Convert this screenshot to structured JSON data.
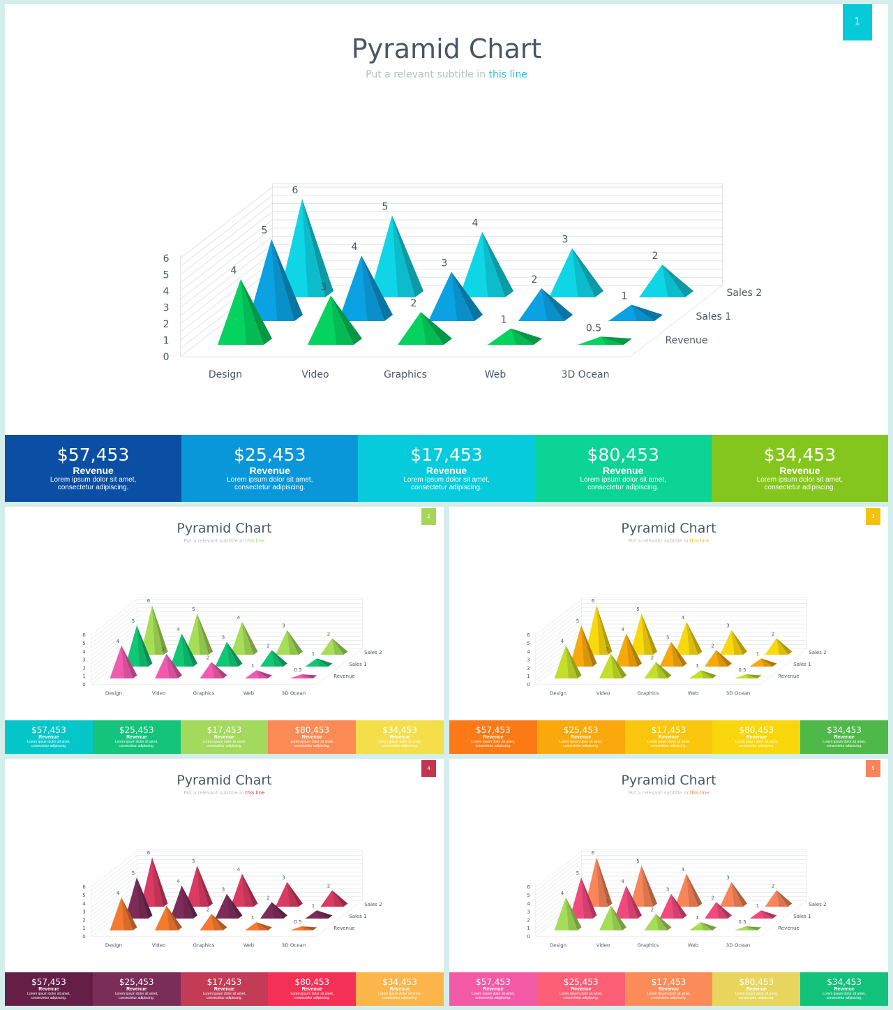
{
  "slides": [
    {
      "title": "Pyramid Chart",
      "subtitle_prefix": "Put a relevant subtitle in ",
      "subtitle_link": "this line",
      "page_number": "1",
      "accent": "#08c9d7",
      "pyramid_colors": [
        "#05d35f",
        "#0ba2e3",
        "#0fd6e6"
      ],
      "card_colors": [
        "#0a4fa3",
        "#0a97d9",
        "#06cbdc",
        "#0cd494",
        "#84c61d"
      ]
    },
    {
      "title": "Pyramid Chart",
      "subtitle_prefix": "Put a relevant subtitle in ",
      "subtitle_link": "this line",
      "page_number": "2",
      "accent": "#a6d658",
      "pyramid_colors": [
        "#f25ab0",
        "#11c775",
        "#a6de58"
      ],
      "card_colors": [
        "#05c6c8",
        "#13c47a",
        "#a3d95c",
        "#fb8a54",
        "#f4df4a"
      ]
    },
    {
      "title": "Pyramid Chart",
      "subtitle_prefix": "Put a relevant subtitle in ",
      "subtitle_link": "this line",
      "page_number": "3",
      "accent": "#f3c20e",
      "pyramid_colors": [
        "#c3df2a",
        "#f7a90c",
        "#f9d80e"
      ],
      "card_colors": [
        "#fb7a16",
        "#fba80c",
        "#f9c60d",
        "#fad60d",
        "#4eb948"
      ]
    },
    {
      "title": "Pyramid Chart",
      "subtitle_prefix": "Put a relevant subtitle in ",
      "subtitle_link": "this line",
      "page_number": "4",
      "accent": "#c3354f",
      "pyramid_colors": [
        "#f57a30",
        "#7d2c5a",
        "#d93b63"
      ],
      "card_colors": [
        "#651f46",
        "#7b2d59",
        "#c33b55",
        "#f43057",
        "#fbb54a"
      ]
    },
    {
      "title": "Pyramid Chart",
      "subtitle_prefix": "Put a relevant subtitle in ",
      "subtitle_link": "this line",
      "page_number": "5",
      "accent": "#f9845a",
      "pyramid_colors": [
        "#a6dd58",
        "#f0497d",
        "#f9855a"
      ],
      "card_colors": [
        "#f35aa6",
        "#fb5f76",
        "#fb8c5a",
        "#e8d55e",
        "#12c27a"
      ]
    }
  ],
  "cards": [
    {
      "value": "$57,453",
      "label": "Revenue",
      "desc1": "Lorem ipsum dolor sit amet,",
      "desc2": "consectetur adipiscing."
    },
    {
      "value": "$25,453",
      "label": "Revenue",
      "desc1": "Lorem ipsum dolor sit amet,",
      "desc2": "consectetur adipiscing."
    },
    {
      "value": "$17,453",
      "label": "Revenue",
      "desc1": "Lorem ipsum dolor sit amet,",
      "desc2": "consectetur adipiscing."
    },
    {
      "value": "$80,453",
      "label": "Revenue",
      "desc1": "Lorem ipsum dolor sit amet,",
      "desc2": "consectetur adipiscing."
    },
    {
      "value": "$34,453",
      "label": "Revenue",
      "desc1": "Lorem ipsum dolor sit amet,",
      "desc2": "consectetur adipiscing."
    }
  ],
  "chart_data": {
    "type": "bar",
    "shape": "pyramid-3d",
    "categories": [
      "Design",
      "Video",
      "Graphics",
      "Web",
      "3D Ocean"
    ],
    "series": [
      {
        "name": "Revenue",
        "values": [
          4,
          3,
          2,
          1,
          0.5
        ]
      },
      {
        "name": "Sales 1",
        "values": [
          5,
          4,
          3,
          2,
          1
        ]
      },
      {
        "name": "Sales 2",
        "values": [
          6,
          5,
          4,
          3,
          2
        ]
      }
    ],
    "ylim": [
      0,
      6
    ],
    "yticks": [
      "0",
      "1",
      "2",
      "3",
      "4",
      "5",
      "6"
    ],
    "data_labels": true,
    "grid": true
  }
}
